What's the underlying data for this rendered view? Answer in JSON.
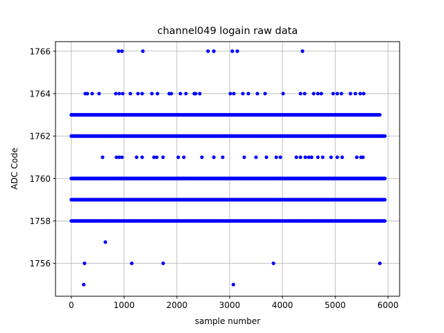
{
  "chart_data": {
    "type": "scatter",
    "title": "channel049 logain raw data",
    "xlabel": "sample number",
    "ylabel": "ADC Code",
    "xlim": [
      -300,
      6220
    ],
    "ylim": [
      1754.45,
      1766.45
    ],
    "xticks": [
      0,
      1000,
      2000,
      3000,
      4000,
      5000,
      6000
    ],
    "yticks": [
      1756,
      1758,
      1760,
      1762,
      1764,
      1766
    ],
    "grid": true,
    "marker_color": "#0000ff",
    "marker": "circle",
    "dense_rows": [
      {
        "y": 1758,
        "x_range": [
          0,
          5950
        ]
      },
      {
        "y": 1759,
        "x_range": [
          0,
          5950
        ]
      },
      {
        "y": 1760,
        "x_range": [
          0,
          5950
        ]
      },
      {
        "y": 1762,
        "x_range": [
          0,
          5950
        ]
      },
      {
        "y": 1763,
        "x_range": [
          0,
          5850
        ]
      }
    ],
    "sparse_points": [
      {
        "y": 1766,
        "x": [
          895,
          960,
          1355,
          2590,
          2700,
          3050,
          3145,
          4380
        ]
      },
      {
        "y": 1764,
        "x": [
          263,
          303,
          395,
          526,
          842,
          908,
          974,
          1118,
          1263,
          1342,
          1526,
          1632,
          1855,
          1895,
          2066,
          2171,
          2329,
          2355,
          2434,
          3013,
          3079,
          3250,
          3355,
          3526,
          3671,
          4013,
          4342,
          4421,
          4592,
          4671,
          4737,
          4961,
          5039,
          5118,
          5289,
          5382,
          5474,
          5539
        ]
      },
      {
        "y": 1761,
        "x": [
          592,
          855,
          908,
          960,
          1237,
          1342,
          1566,
          1618,
          1737,
          2026,
          2132,
          2474,
          2700,
          2868,
          3276,
          3500,
          3697,
          3882,
          3961,
          4263,
          4342,
          4434,
          4500,
          4553,
          4671,
          4763,
          4921,
          5039,
          5132,
          5408,
          5487,
          5526
        ]
      },
      {
        "y": 1757,
        "x": [
          645
        ]
      },
      {
        "y": 1756,
        "x": [
          250,
          1145,
          1740,
          3830,
          5845
        ]
      },
      {
        "y": 1755,
        "x": [
          235,
          3070
        ]
      }
    ]
  }
}
